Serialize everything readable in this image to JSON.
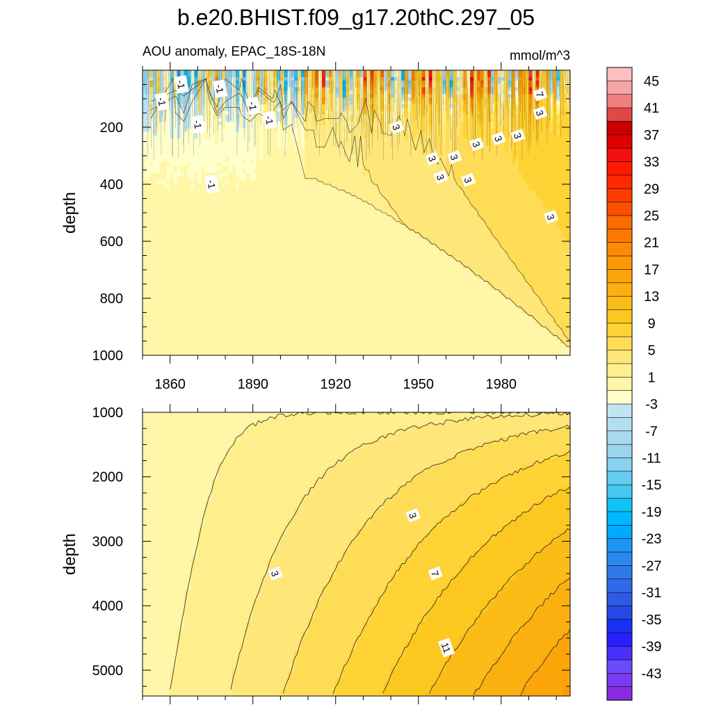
{
  "chart_data": [
    {
      "type": "heatmap",
      "panel": "upper",
      "title": "b.e20.BHIST.f09_g17.20thC.297_05",
      "subtitle_left": "AOU anomaly, EPAC_18S-18N",
      "subtitle_right": "mmol/m^3",
      "ylabel": "depth",
      "xlabel": "",
      "xlim": [
        1850,
        2005
      ],
      "ylim": [
        1000,
        0
      ],
      "x_ticks": [
        1860,
        1890,
        1920,
        1950,
        1980
      ],
      "x_tick_labels": [
        "1860",
        "1890",
        "1920",
        "1950",
        "1980"
      ],
      "y_ticks": [
        200,
        400,
        600,
        800,
        1000
      ],
      "y_tick_labels": [
        "200",
        "400",
        "600",
        "800",
        "1000"
      ],
      "contour_labels": [
        {
          "text": "-1",
          "year": 1857,
          "depth": 110
        },
        {
          "text": "-1",
          "year": 1864,
          "depth": 50
        },
        {
          "text": "-1",
          "year": 1878,
          "depth": 65
        },
        {
          "text": "-1",
          "year": 1890,
          "depth": 125
        },
        {
          "text": "-1",
          "year": 1896,
          "depth": 175
        },
        {
          "text": "-1",
          "year": 1870,
          "depth": 190
        },
        {
          "text": "-1",
          "year": 1875,
          "depth": 400
        },
        {
          "text": "3",
          "year": 1942,
          "depth": 200
        },
        {
          "text": "3",
          "year": 1955,
          "depth": 310
        },
        {
          "text": "3",
          "year": 1963,
          "depth": 305
        },
        {
          "text": "3",
          "year": 1958,
          "depth": 375
        },
        {
          "text": "3",
          "year": 1968,
          "depth": 385
        },
        {
          "text": "3",
          "year": 1971,
          "depth": 260
        },
        {
          "text": "3",
          "year": 1979,
          "depth": 240
        },
        {
          "text": "3",
          "year": 1986,
          "depth": 230
        },
        {
          "text": "7",
          "year": 1994,
          "depth": 85
        },
        {
          "text": "3",
          "year": 1994,
          "depth": 150
        },
        {
          "text": "3",
          "year": 1998,
          "depth": 515
        }
      ],
      "summary": "Surface layer (0-300 m) shows strong alternating anomalies; negative values (-1 to -30) dominate before 1910, positive values (3 to 9) grow after 1940 and deepen to ~900 m by 2005."
    },
    {
      "type": "heatmap",
      "panel": "lower",
      "ylabel": "depth",
      "xlim": [
        1850,
        2005
      ],
      "ylim": [
        5400,
        1000
      ],
      "y_ticks": [
        1000,
        2000,
        3000,
        4000,
        5000
      ],
      "y_tick_labels": [
        "1000",
        "2000",
        "3000",
        "4000",
        "5000"
      ],
      "contour_levels": [
        1,
        3,
        5,
        7,
        9,
        11,
        13,
        15
      ],
      "contour_labels": [
        {
          "text": "3",
          "year": 1948,
          "depth": 2600
        },
        {
          "text": "3",
          "year": 1898,
          "depth": 3500
        },
        {
          "text": "7",
          "year": 1956,
          "depth": 3500
        },
        {
          "text": "11",
          "year": 1960,
          "depth": 4650
        }
      ],
      "summary": "Deep-ocean AOU anomaly increases steadily with time and depth, reaching ~15 mmol/m^3 near 5000 m by 2005."
    },
    {
      "type": "colorbar",
      "levels": [
        -45,
        -43,
        -41,
        -39,
        -37,
        -35,
        -33,
        -31,
        -29,
        -27,
        -25,
        -23,
        -21,
        -19,
        -17,
        -15,
        -13,
        -11,
        -9,
        -7,
        -5,
        -3,
        -1,
        1,
        3,
        5,
        7,
        9,
        11,
        13,
        15,
        17,
        19,
        21,
        23,
        25,
        27,
        29,
        31,
        33,
        35,
        37,
        39,
        41,
        43,
        45
      ],
      "tick_labels": [
        "45",
        "41",
        "37",
        "33",
        "29",
        "25",
        "21",
        "17",
        "13",
        "9",
        "5",
        "1",
        "-3",
        "-7",
        "-11",
        "-15",
        "-19",
        "-23",
        "-27",
        "-31",
        "-35",
        "-39",
        "-43"
      ],
      "colors": [
        "#8a2be2",
        "#7a3cf0",
        "#6a4cf8",
        "#4a30ff",
        "#2a20ff",
        "#1a30f0",
        "#2848e6",
        "#2f5ae6",
        "#306ae8",
        "#2f7ae8",
        "#2a88ee",
        "#1c96f5",
        "#00aaff",
        "#00b8ff",
        "#10c2f5",
        "#44c8f2",
        "#66ccf0",
        "#88d2ef",
        "#9ad4ef",
        "#a8daf0",
        "#b4dff0",
        "#c2e4f2",
        "#ffffcc",
        "#fff6a8",
        "#ffee8c",
        "#ffe678",
        "#ffdc55",
        "#ffd235",
        "#fcc820",
        "#fcbc18",
        "#fbb010",
        "#fca50a",
        "#fc9806",
        "#fd8a04",
        "#fc7a02",
        "#fc6a00",
        "#fc5000",
        "#fe3c00",
        "#ff2800",
        "#ff1a00",
        "#f60f0f",
        "#e00000",
        "#c80000",
        "#e04848",
        "#f08080",
        "#f7a6a6",
        "#fcc0c0"
      ]
    }
  ]
}
